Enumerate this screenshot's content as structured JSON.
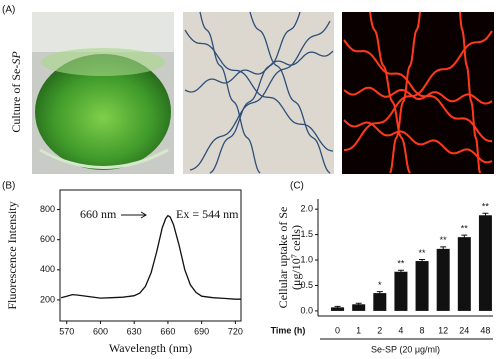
{
  "figure": {
    "panel_label": "(A)",
    "photo_caption": "Culture of Se-",
    "photo_caption_italic": "SP"
  },
  "chart_data": [
    {
      "type": "line",
      "panel_label": "(B)",
      "x": [
        565,
        570,
        575,
        580,
        590,
        600,
        610,
        620,
        630,
        635,
        640,
        645,
        650,
        655,
        658,
        660,
        662,
        665,
        670,
        675,
        680,
        685,
        690,
        700,
        710,
        720,
        725
      ],
      "series": [
        {
          "color": "#111111",
          "values": [
            215,
            225,
            235,
            232,
            222,
            212,
            215,
            218,
            228,
            245,
            290,
            380,
            520,
            680,
            740,
            760,
            750,
            700,
            560,
            400,
            300,
            250,
            225,
            215,
            210,
            205,
            205
          ]
        }
      ],
      "xlim": [
        564,
        725
      ],
      "ylim": [
        60,
        930
      ],
      "xticks": [
        570,
        600,
        630,
        660,
        690,
        720
      ],
      "yticks": [
        200,
        400,
        600,
        800
      ],
      "x_label": "Wavelength (nm)",
      "y_label": "Fluorescence Intensity",
      "annotations": [
        "660 nm",
        "Ex = 544 nm"
      ]
    },
    {
      "type": "bar",
      "panel_label": "(C)",
      "categories": [
        "0",
        "1",
        "2",
        "4",
        "8",
        "12",
        "24",
        "48"
      ],
      "values": [
        0.07,
        0.13,
        0.35,
        0.77,
        0.98,
        1.22,
        1.45,
        1.88
      ],
      "errors": [
        0.02,
        0.02,
        0.03,
        0.03,
        0.03,
        0.04,
        0.04,
        0.04
      ],
      "significance": [
        null,
        null,
        "*",
        "**",
        "**",
        "**",
        "**",
        "**"
      ],
      "color": "#111111",
      "ylim": [
        -0.1,
        2.2
      ],
      "yticks": [
        {
          "value": 0,
          "label": "0.0"
        },
        0.5,
        {
          "value": 1,
          "label": "1.0"
        },
        1.5,
        {
          "value": 2,
          "label": "2.0"
        }
      ],
      "x_prefix": "Time (h)",
      "x_label": "Se-SP (20 μg/ml)",
      "y_label": [
        "Cellular uptake of Se",
        "(μg/10⁷ cells)"
      ]
    }
  ]
}
